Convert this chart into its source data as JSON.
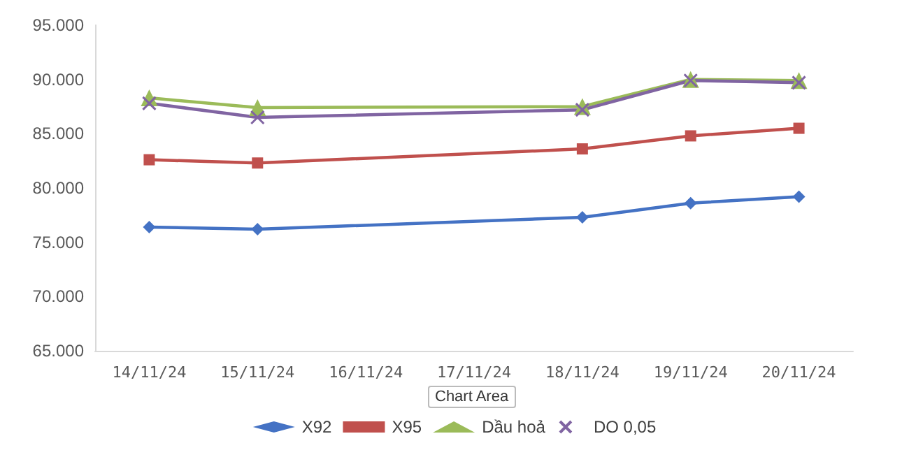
{
  "chart_data": {
    "type": "line",
    "categories": [
      "14/11/24",
      "15/11/24",
      "16/11/24",
      "17/11/24",
      "18/11/24",
      "19/11/24",
      "20/11/24"
    ],
    "series": [
      {
        "name": "X92",
        "color": "#4472c4",
        "marker": "diamond",
        "values": [
          76400,
          76200,
          null,
          null,
          77300,
          78600,
          79200
        ]
      },
      {
        "name": "X95",
        "color": "#c0504d",
        "marker": "square",
        "values": [
          82600,
          82300,
          null,
          null,
          83600,
          84800,
          85500
        ]
      },
      {
        "name": "Dầu hoả",
        "color": "#9bbb59",
        "marker": "triangle",
        "values": [
          88300,
          87400,
          null,
          null,
          87500,
          90000,
          89900
        ]
      },
      {
        "name": "DO 0,05",
        "color": "#8064a2",
        "marker": "cross",
        "values": [
          87800,
          86500,
          null,
          null,
          87200,
          89900,
          89700
        ]
      }
    ],
    "ylim": [
      65000,
      95000
    ],
    "yticks": [
      {
        "value": 65000,
        "label": "65.000"
      },
      {
        "value": 70000,
        "label": "70.000"
      },
      {
        "value": 75000,
        "label": "75.000"
      },
      {
        "value": 80000,
        "label": "80.000"
      },
      {
        "value": 85000,
        "label": "85.000"
      },
      {
        "value": 90000,
        "label": "90.000"
      },
      {
        "value": 95000,
        "label": "95.000"
      }
    ],
    "grid": false,
    "legend": "bottom",
    "line_style": "solid",
    "annotations": [
      "Chart Area"
    ]
  }
}
